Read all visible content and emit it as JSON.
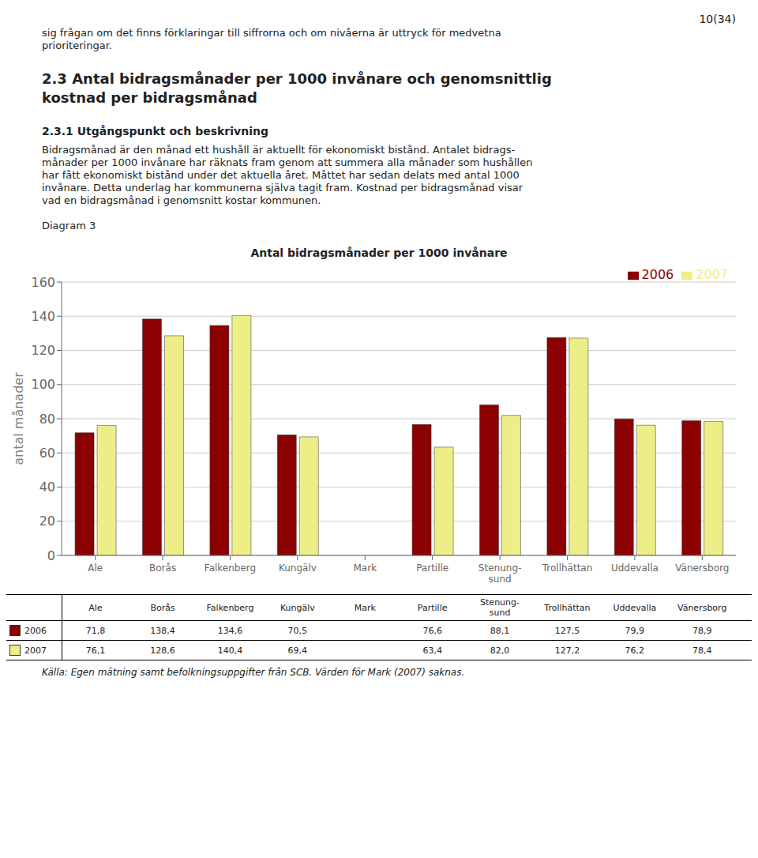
{
  "chart_data": {
    "type": "bar",
    "title": "Antal bidragsmånader per 1000 invånare",
    "ylabel": "antal månader",
    "categories": [
      "Ale",
      "Borås",
      "Falkenberg",
      "Kungälv",
      "Mark",
      "Partille",
      "Stenung-\nsund",
      "Trollhättan",
      "Uddevalla",
      "Vänersborg"
    ],
    "series": [
      {
        "name": "2006",
        "color": "#8B0000",
        "values": [
          71.8,
          138.4,
          134.6,
          70.5,
          null,
          76.6,
          88.1,
          127.5,
          79.9,
          78.9
        ],
        "value_labels": [
          "71,8",
          "138,4",
          "134,6",
          "70,5",
          null,
          "76,6",
          "88,1",
          "127,5",
          "79,9",
          "78,9"
        ]
      },
      {
        "name": "2007",
        "color": "#EEEE88",
        "values": [
          76.1,
          128.6,
          140.4,
          69.4,
          null,
          63.4,
          82.0,
          127.2,
          76.2,
          78.4
        ],
        "value_labels": [
          "76,1",
          "128,6",
          "140,4",
          "69,4",
          null,
          "63,4",
          "82,0",
          "127,2",
          "76,2",
          "78,4"
        ]
      }
    ],
    "ylim": [
      0,
      160
    ],
    "yticks": [
      0,
      20,
      40,
      60,
      80,
      100,
      120,
      140,
      160
    ],
    "grid": true,
    "legend": "upper right",
    "annotations": [
      "10(34)",
      "sig frågan om det finns förklaringar till siffrorna och om nivåerna är uttryck för medvetna",
      "prioriteringar.",
      "2.3 Antal bidragsmånader per 1000 invånare och genomsnittlig\nkostnad per bidragsmånad",
      "2.3.1 Utgångspunkt och beskrivning",
      "Bidragsmånad är den månad ett hushåll är aktuellt för ekonomiskt bistånd. Antalet bidrags-",
      "månader per 1000 invånare har räknats fram genom att summera alla månader som hushållen",
      "har fått ekonomiskt bistånd under det aktuella året. Måttet har sedan delats med antal 1000",
      "invånare. Detta underlag har kommunerna själva tagit fram. Kostnad per bidragsmånad visar",
      "vad en bidragsmånad i genomsnitt kostar kommunen.",
      "Diagram 3",
      "Källa: Egen mätning samt befolkningsuppgifter från SCB. Värden för Mark (2007) saknas."
    ]
  }
}
